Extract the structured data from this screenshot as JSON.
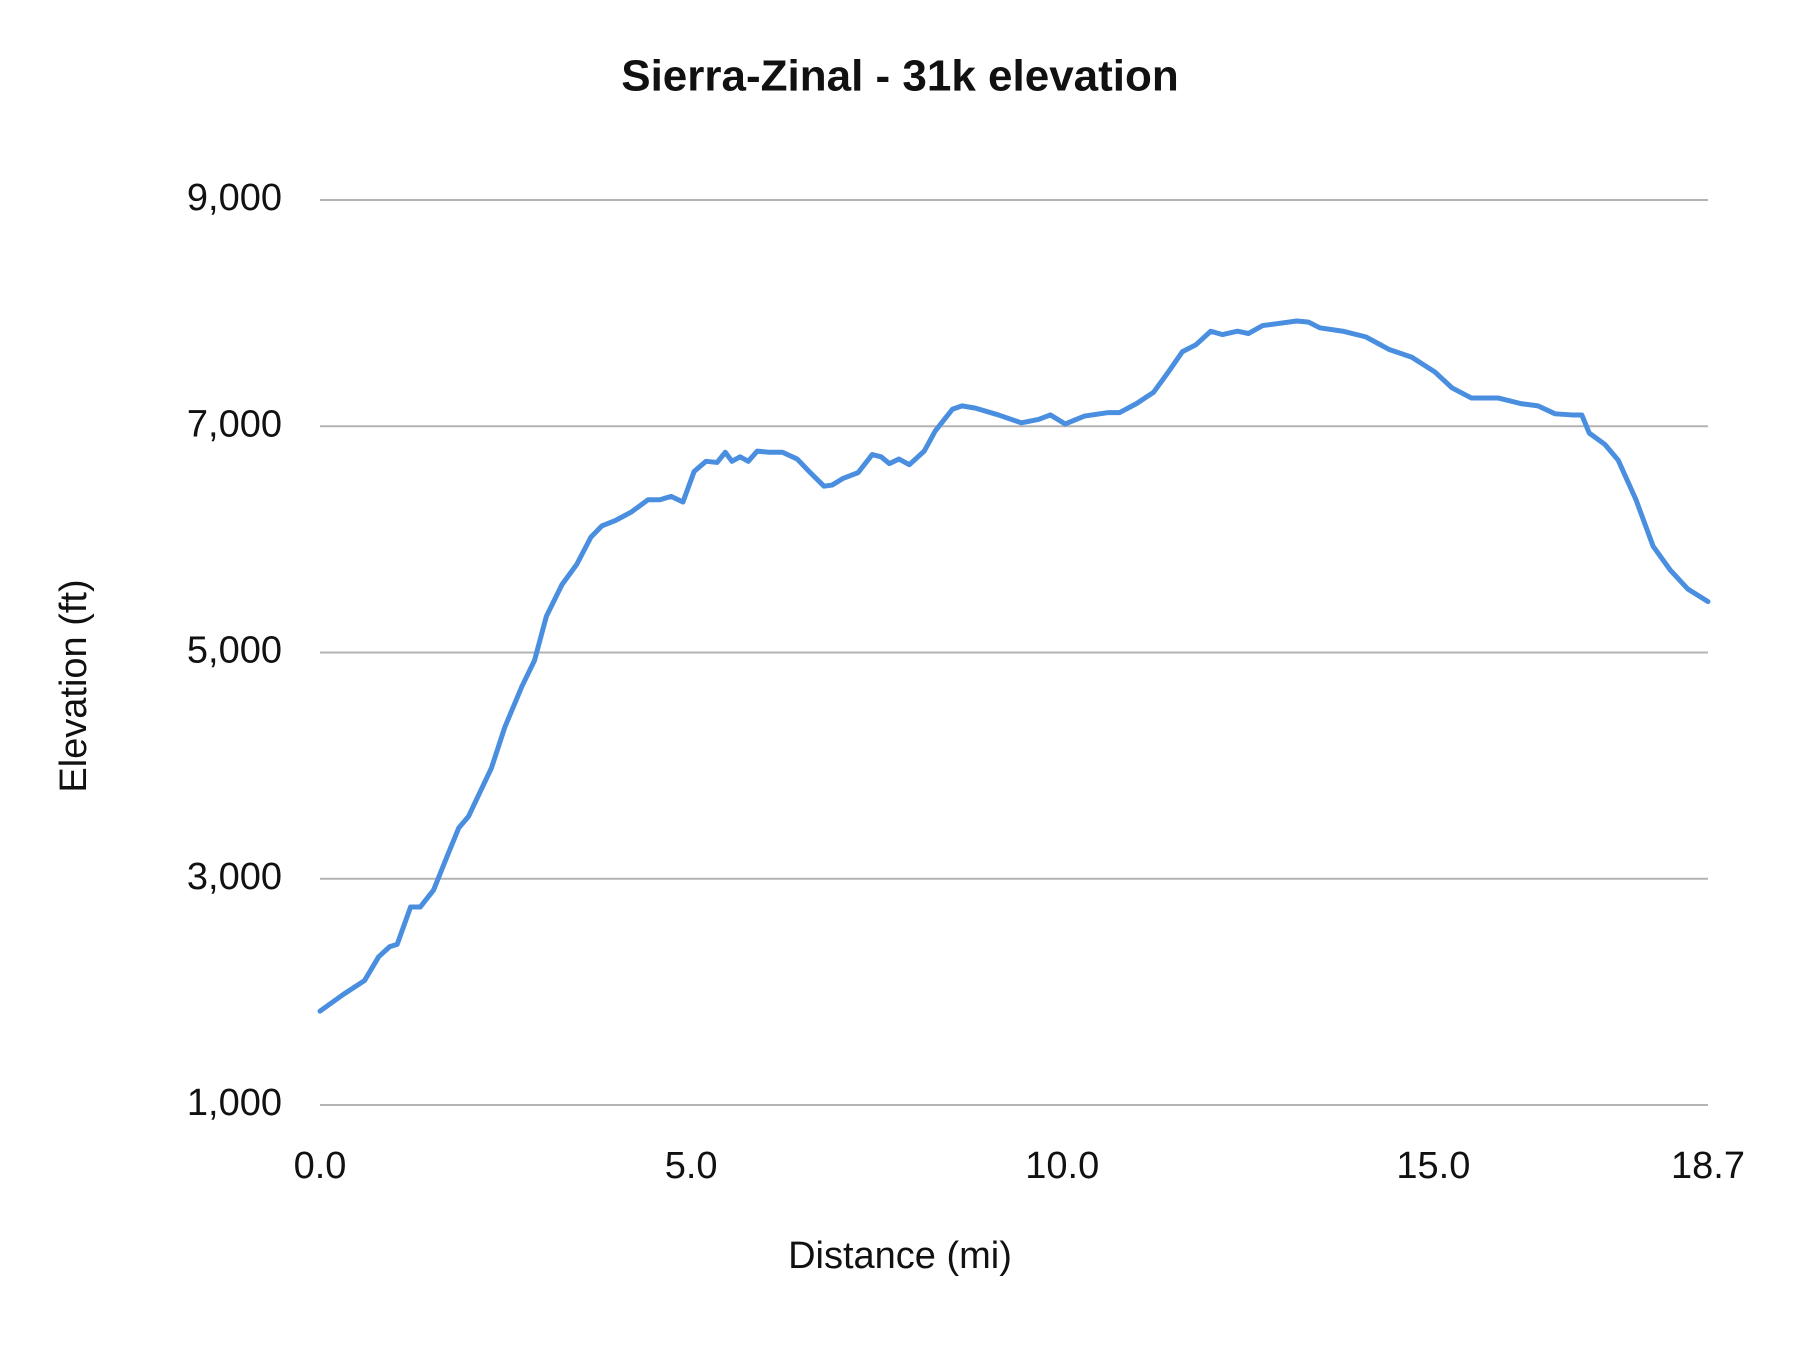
{
  "chart_data": {
    "type": "line",
    "title": "Sierra-Zinal - 31k elevation",
    "x_label": "Distance (mi)",
    "y_label": "Elevation (ft)",
    "x": [
      0,
      0.32,
      0.6,
      0.79,
      0.94,
      1.04,
      1.22,
      1.35,
      1.53,
      1.72,
      1.87,
      2.0,
      2.31,
      2.49,
      2.72,
      2.89,
      3.05,
      3.26,
      3.46,
      3.65,
      3.8,
      3.99,
      4.19,
      4.42,
      4.58,
      4.73,
      4.89,
      5.04,
      5.2,
      5.35,
      5.46,
      5.55,
      5.66,
      5.77,
      5.89,
      6.05,
      6.23,
      6.43,
      6.59,
      6.79,
      6.9,
      7.05,
      7.25,
      7.44,
      7.56,
      7.67,
      7.8,
      7.94,
      8.14,
      8.29,
      8.52,
      8.65,
      8.83,
      9.14,
      9.45,
      9.68,
      9.84,
      10.04,
      10.3,
      10.61,
      10.77,
      11.0,
      11.23,
      11.43,
      11.62,
      11.8,
      12.0,
      12.16,
      12.36,
      12.51,
      12.7,
      12.93,
      13.16,
      13.32,
      13.47,
      13.78,
      14.09,
      14.4,
      14.71,
      15.02,
      15.25,
      15.51,
      15.87,
      16.18,
      16.41,
      16.64,
      16.87,
      17.0,
      17.1,
      17.31,
      17.49,
      17.73,
      17.96,
      18.19,
      18.43,
      18.7
    ],
    "values": [
      1830,
      1980,
      2100,
      2310,
      2400,
      2420,
      2750,
      2750,
      2900,
      3210,
      3450,
      3550,
      3980,
      4340,
      4700,
      4930,
      5320,
      5600,
      5780,
      6020,
      6120,
      6170,
      6240,
      6350,
      6350,
      6380,
      6330,
      6600,
      6690,
      6680,
      6770,
      6690,
      6730,
      6690,
      6780,
      6770,
      6770,
      6710,
      6600,
      6470,
      6480,
      6540,
      6590,
      6750,
      6730,
      6670,
      6710,
      6660,
      6780,
      6960,
      7150,
      7180,
      7160,
      7100,
      7030,
      7060,
      7100,
      7020,
      7090,
      7120,
      7120,
      7200,
      7300,
      7480,
      7660,
      7720,
      7840,
      7810,
      7840,
      7820,
      7890,
      7910,
      7930,
      7920,
      7870,
      7840,
      7790,
      7680,
      7610,
      7480,
      7340,
      7250,
      7250,
      7200,
      7180,
      7110,
      7100,
      7100,
      6940,
      6840,
      6700,
      6350,
      5940,
      5730,
      5560,
      5450
    ],
    "color": "#4a8ee0",
    "xlim": [
      0,
      18.7
    ],
    "xticks": [
      {
        "value": 0,
        "label": "0.0"
      },
      {
        "value": 5,
        "label": "5.0"
      },
      {
        "value": 10,
        "label": "10.0"
      },
      {
        "value": 15,
        "label": "15.0"
      },
      18.7
    ],
    "ylim": [
      1000,
      9000
    ],
    "yticks": [
      {
        "value": 1000,
        "label": "1,000"
      },
      {
        "value": 3000,
        "label": "3,000"
      },
      {
        "value": 5000,
        "label": "5,000"
      },
      {
        "value": 7000,
        "label": "7,000"
      },
      {
        "value": 9000,
        "label": "9,000"
      }
    ],
    "grid": true
  }
}
